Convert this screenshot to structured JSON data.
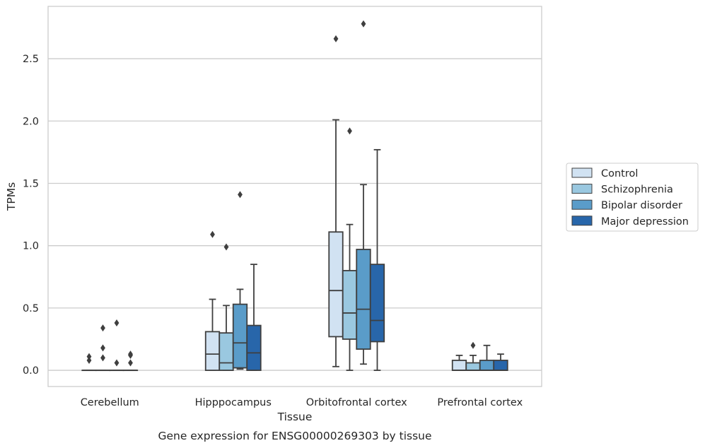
{
  "chart_data": {
    "type": "box",
    "title": "",
    "xlabel": "Tissue",
    "ylabel": "TPMs",
    "caption": "Gene expression for ENSG00000269303 by tissue",
    "ylim": [
      -0.13,
      2.92
    ],
    "yticks": [
      0.0,
      0.5,
      1.0,
      1.5,
      2.0,
      2.5
    ],
    "ytick_labels": [
      "0.0",
      "0.5",
      "1.0",
      "1.5",
      "2.0",
      "2.5"
    ],
    "grid": "horizontal",
    "legend_position": "right, outside",
    "categories": [
      "Cerebellum",
      "Hipppocampus",
      "Orbitofrontal cortex",
      "Prefrontal cortex"
    ],
    "series": [
      {
        "name": "Control",
        "color": "#d1e2f2",
        "boxes": [
          {
            "whislo": 0.0,
            "q1": 0.0,
            "med": 0.0,
            "q3": 0.0,
            "whishi": 0.0,
            "fliers": [
              0.08,
              0.11
            ]
          },
          {
            "whislo": 0.0,
            "q1": 0.0,
            "med": 0.13,
            "q3": 0.31,
            "whishi": 0.57,
            "fliers": [
              1.09
            ]
          },
          {
            "whislo": 0.03,
            "q1": 0.27,
            "med": 0.64,
            "q3": 1.11,
            "whishi": 2.01,
            "fliers": [
              2.66
            ]
          },
          {
            "whislo": 0.0,
            "q1": 0.0,
            "med": 0.0,
            "q3": 0.08,
            "whishi": 0.12,
            "fliers": []
          }
        ]
      },
      {
        "name": "Schizophrenia",
        "color": "#9ac8e0",
        "boxes": [
          {
            "whislo": 0.0,
            "q1": 0.0,
            "med": 0.0,
            "q3": 0.0,
            "whishi": 0.0,
            "fliers": [
              0.1,
              0.18,
              0.34
            ]
          },
          {
            "whislo": 0.0,
            "q1": 0.0,
            "med": 0.06,
            "q3": 0.3,
            "whishi": 0.52,
            "fliers": [
              0.99
            ]
          },
          {
            "whislo": 0.0,
            "q1": 0.25,
            "med": 0.46,
            "q3": 0.8,
            "whishi": 1.17,
            "fliers": [
              1.92
            ]
          },
          {
            "whislo": 0.0,
            "q1": 0.0,
            "med": 0.0,
            "q3": 0.06,
            "whishi": 0.12,
            "fliers": [
              0.2
            ]
          }
        ]
      },
      {
        "name": "Bipolar disorder",
        "color": "#5a9cc9",
        "boxes": [
          {
            "whislo": 0.0,
            "q1": 0.0,
            "med": 0.0,
            "q3": 0.0,
            "whishi": 0.0,
            "fliers": [
              0.06,
              0.38
            ]
          },
          {
            "whislo": 0.01,
            "q1": 0.02,
            "med": 0.22,
            "q3": 0.53,
            "whishi": 0.65,
            "fliers": [
              1.41
            ]
          },
          {
            "whislo": 0.05,
            "q1": 0.17,
            "med": 0.49,
            "q3": 0.97,
            "whishi": 1.49,
            "fliers": [
              2.78
            ]
          },
          {
            "whislo": 0.0,
            "q1": 0.0,
            "med": 0.0,
            "q3": 0.08,
            "whishi": 0.2,
            "fliers": []
          }
        ]
      },
      {
        "name": "Major depression",
        "color": "#2866aa",
        "boxes": [
          {
            "whislo": 0.0,
            "q1": 0.0,
            "med": 0.0,
            "q3": 0.0,
            "whishi": 0.0,
            "fliers": [
              0.06,
              0.12,
              0.13
            ]
          },
          {
            "whislo": 0.0,
            "q1": 0.0,
            "med": 0.14,
            "q3": 0.36,
            "whishi": 0.85,
            "fliers": []
          },
          {
            "whislo": 0.0,
            "q1": 0.23,
            "med": 0.4,
            "q3": 0.85,
            "whishi": 1.77,
            "fliers": []
          },
          {
            "whislo": 0.0,
            "q1": 0.0,
            "med": 0.0,
            "q3": 0.08,
            "whishi": 0.13,
            "fliers": []
          }
        ]
      }
    ]
  }
}
